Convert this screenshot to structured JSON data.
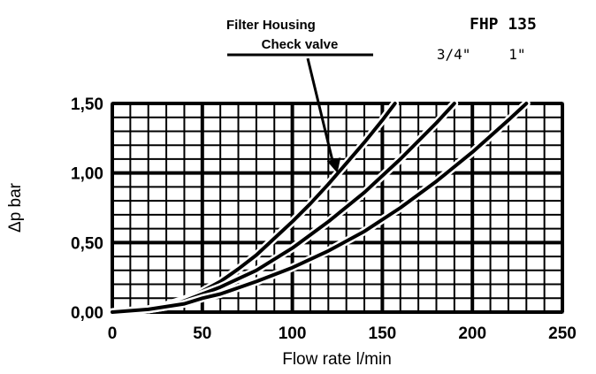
{
  "header": {
    "title": "Filter Housing",
    "model": "FHP 135"
  },
  "chart_data": {
    "type": "line",
    "xlabel": "Flow rate l/min",
    "ylabel": "Δp bar",
    "xlim": [
      0,
      250
    ],
    "ylim": [
      0,
      1.5
    ],
    "x_ticks": [
      0,
      50,
      100,
      150,
      200,
      250
    ],
    "x_tick_labels": [
      "0",
      "50",
      "100",
      "150",
      "200",
      "250"
    ],
    "y_ticks": [
      0,
      0.5,
      1.0,
      1.5
    ],
    "y_tick_labels": [
      "0,00",
      "0,50",
      "1,00",
      "1,50"
    ],
    "grid": true,
    "minor_grid": {
      "x_step": 10,
      "y_step": 0.1
    },
    "series": [
      {
        "name": "Check valve",
        "x": [
          0,
          20,
          30,
          40,
          50,
          60,
          70,
          80,
          90,
          100,
          110,
          120,
          130,
          140,
          150,
          157
        ],
        "y": [
          0,
          0.02,
          0.05,
          0.09,
          0.15,
          0.22,
          0.31,
          0.41,
          0.53,
          0.65,
          0.78,
          0.92,
          1.07,
          1.22,
          1.38,
          1.5
        ]
      },
      {
        "name": "3/4\"",
        "x": [
          0,
          20,
          30,
          40,
          50,
          60,
          80,
          100,
          120,
          140,
          160,
          180,
          190
        ],
        "y": [
          0,
          0.02,
          0.04,
          0.08,
          0.13,
          0.18,
          0.3,
          0.46,
          0.65,
          0.86,
          1.1,
          1.36,
          1.5
        ]
      },
      {
        "name": "1\"",
        "x": [
          0,
          20,
          40,
          50,
          60,
          80,
          100,
          120,
          140,
          160,
          180,
          200,
          220,
          230
        ],
        "y": [
          0,
          0.02,
          0.06,
          0.1,
          0.13,
          0.22,
          0.32,
          0.44,
          0.58,
          0.75,
          0.94,
          1.15,
          1.38,
          1.5
        ]
      }
    ],
    "annotations": [
      {
        "text": "Check valve",
        "kind": "arrow-label",
        "points_to_series": "Check valve"
      }
    ]
  }
}
